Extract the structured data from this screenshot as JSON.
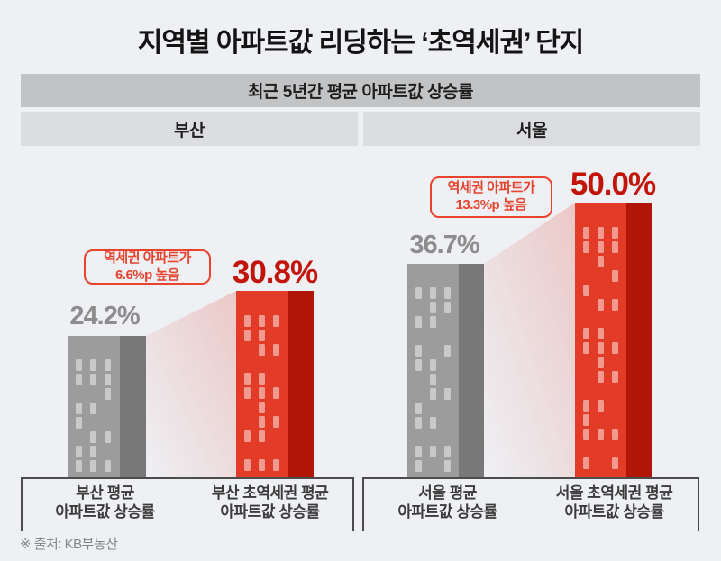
{
  "title": "지역별 아파트값 리딩하는 ‘초역세권’ 단지",
  "banner": {
    "label": "최근 5년간 평균 아파트값 상승률"
  },
  "footer": "※ 출처: KB부동산",
  "colors": {
    "bg": "#eef0f4",
    "title": "#141414",
    "banner-bg": "#c2c3c5",
    "sub-bg": "#dcdde0",
    "gray-front": "#9c9c9c",
    "gray-side": "#787878",
    "gray-window": "#c9c9c9",
    "red-front": "#e23b27",
    "red-side": "#b01708",
    "red-window": "#f09a90",
    "pct-gray": "#8d8d8d",
    "pct-red": "#c3140a",
    "callout": "#e8432e",
    "bracket": "#4c4c4c",
    "label": "#3c3c3c",
    "footer": "#85868c"
  },
  "chart_data": {
    "type": "bar",
    "title": "최근 5년간 평균 아파트값 상승률",
    "unit": "%",
    "ylim": [
      0,
      50
    ],
    "groups": [
      {
        "region": "부산",
        "bars": [
          {
            "name": "부산 평균 아파트값 상승률",
            "label_line1": "부산 평균",
            "label_line2": "아파트값 상승률",
            "value": 24.2,
            "display": "24.2%",
            "style": "gray"
          },
          {
            "name": "부산 초역세권 평균 아파트값 상승률",
            "label_line1": "부산 초역세권 평균",
            "label_line2": "아파트값 상승률",
            "value": 30.8,
            "display": "30.8%",
            "style": "red"
          }
        ],
        "callout": {
          "line1": "역세권 아파트가",
          "line2": "6.6%p 높음",
          "diff_pp": 6.6
        }
      },
      {
        "region": "서울",
        "bars": [
          {
            "name": "서울 평균 아파트값 상승률",
            "label_line1": "서울 평균",
            "label_line2": "아파트값 상승률",
            "value": 36.7,
            "display": "36.7%",
            "style": "gray"
          },
          {
            "name": "서울 초역세권 평균 아파트값 상승률",
            "label_line1": "서울 초역세권 평균",
            "label_line2": "아파트값 상승률",
            "value": 50.0,
            "display": "50.0%",
            "style": "red"
          }
        ],
        "callout": {
          "line1": "역세권 아파트가",
          "line2": "13.3%p 높음",
          "diff_pp": 13.3
        }
      }
    ]
  }
}
